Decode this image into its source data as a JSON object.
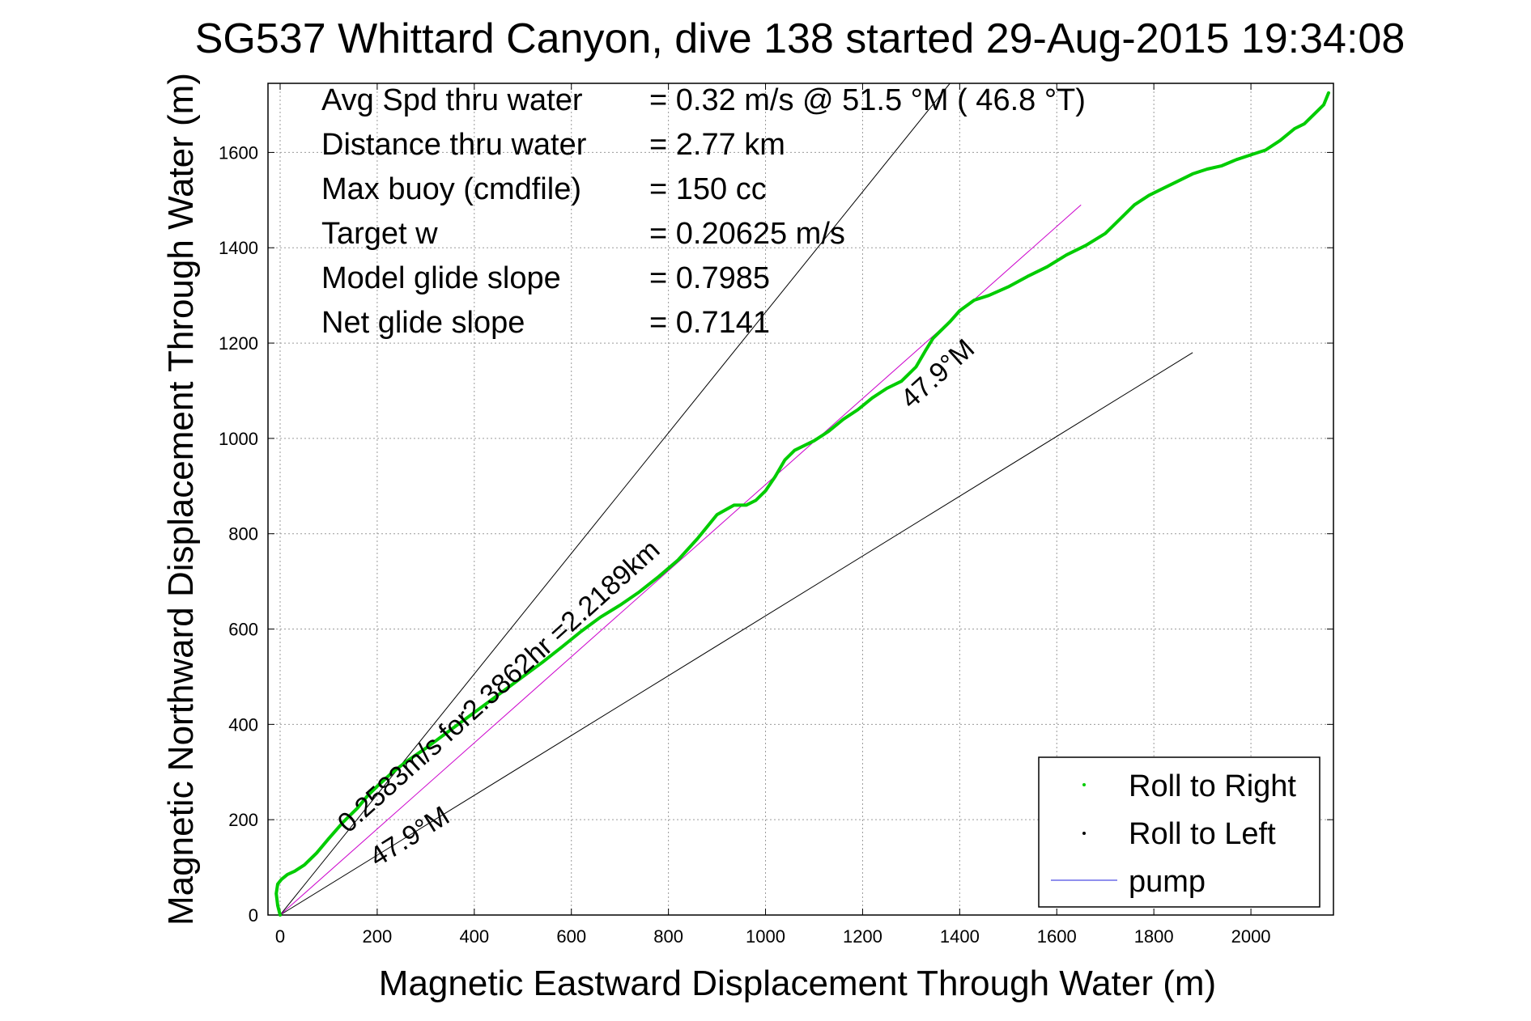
{
  "chart_data": {
    "type": "line",
    "title": "SG537 Whittard Canyon, dive 138 started 29-Aug-2015 19:34:08",
    "xlabel": "Magnetic Eastward Displacement Through Water (m)",
    "ylabel": "Magnetic Northward Displacement Through Water (m)",
    "xlim": [
      -25,
      2170
    ],
    "ylim": [
      0,
      1745
    ],
    "xticks": [
      0,
      200,
      400,
      600,
      800,
      1000,
      1200,
      1400,
      1600,
      1800,
      2000
    ],
    "yticks": [
      0,
      200,
      400,
      600,
      800,
      1000,
      1200,
      1400,
      1600
    ],
    "grid": true,
    "legend_position": "bottom-right",
    "info_lines": [
      {
        "label": "Avg Spd thru water",
        "value": "=  0.32 m/s @  51.5 °M ( 46.8 °T)"
      },
      {
        "label": "Distance thru water",
        "value": "=  2.77 km"
      },
      {
        "label": "Max buoy (cmdfile)",
        "value": "= 150 cc"
      },
      {
        "label": "Target w",
        "value": "= 0.20625 m/s"
      },
      {
        "label": "Model glide slope",
        "value": "= 0.7985"
      },
      {
        "label": "Net glide slope",
        "value": "= 0.7141"
      }
    ],
    "series": [
      {
        "name": "Roll to Right",
        "color": "#00cc00",
        "x": [
          0,
          -5,
          -8,
          -5,
          3,
          15,
          30,
          50,
          75,
          100,
          130,
          160,
          180,
          200,
          230,
          260,
          300,
          340,
          380,
          420,
          460,
          500,
          540,
          580,
          620,
          660,
          700,
          740,
          780,
          820,
          860,
          900,
          935,
          960,
          980,
          1000,
          1020,
          1040,
          1060,
          1080,
          1100,
          1130,
          1160,
          1190,
          1220,
          1250,
          1280,
          1310,
          1330,
          1345,
          1360,
          1380,
          1400,
          1430,
          1460,
          1500,
          1540,
          1580,
          1620,
          1660,
          1700,
          1730,
          1760,
          1790,
          1820,
          1850,
          1880,
          1910,
          1940,
          1970,
          2000,
          2030,
          2060,
          2090,
          2110,
          2130,
          2150,
          2160
        ],
        "y": [
          0,
          20,
          45,
          65,
          75,
          85,
          92,
          105,
          130,
          160,
          195,
          225,
          250,
          270,
          298,
          322,
          350,
          380,
          410,
          440,
          470,
          500,
          530,
          562,
          595,
          625,
          650,
          678,
          710,
          745,
          790,
          840,
          860,
          860,
          870,
          890,
          920,
          955,
          975,
          985,
          995,
          1015,
          1040,
          1060,
          1085,
          1105,
          1120,
          1150,
          1185,
          1210,
          1225,
          1245,
          1268,
          1290,
          1300,
          1318,
          1340,
          1360,
          1385,
          1405,
          1430,
          1460,
          1490,
          1510,
          1525,
          1540,
          1555,
          1565,
          1572,
          1585,
          1595,
          1605,
          1625,
          1650,
          1660,
          1680,
          1700,
          1725
        ]
      },
      {
        "name": "Roll to Left",
        "color": "#000000",
        "x": [],
        "y": []
      },
      {
        "name": "pump",
        "color": "#2222dd",
        "x": [],
        "y": []
      }
    ],
    "reference_lines": [
      {
        "name": "thin-ray-upper",
        "x": [
          0,
          1380
        ],
        "y": [
          0,
          1745
        ],
        "color": "#000000"
      },
      {
        "name": "thin-ray-lower",
        "x": [
          0,
          1880
        ],
        "y": [
          0,
          1180
        ],
        "color": "#000000"
      },
      {
        "name": "magenta-net-line",
        "x": [
          0,
          1650
        ],
        "y": [
          0,
          1490
        ],
        "color": "#cc00cc"
      }
    ],
    "annotations": [
      {
        "text": "0.2583m/s for2.3862hr =2.2189km",
        "x": 140,
        "y": 170,
        "angle_deg": -42
      },
      {
        "text": "47.9°M",
        "x": 200,
        "y": 100,
        "angle_deg": -32
      },
      {
        "text": "47.9°M",
        "x": 1300,
        "y": 1060,
        "angle_deg": -42
      }
    ]
  }
}
